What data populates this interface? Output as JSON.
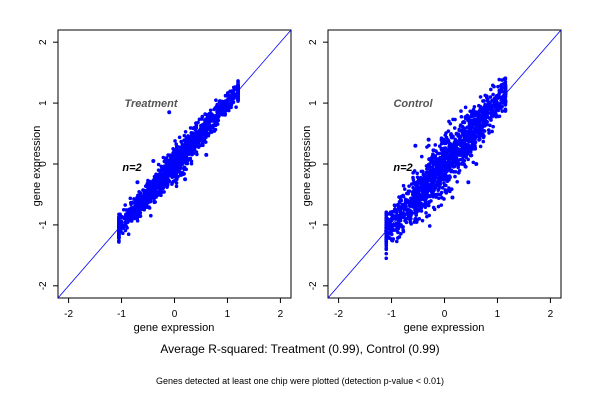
{
  "summary": "Average R-squared: Treatment (0.99), Control (0.99)",
  "footnote": "Genes detected at least one chip were plotted (detection p-value < 0.01)",
  "colors": {
    "points": "#0000ff",
    "identity_line": "#0000ff",
    "axes": "#000000"
  },
  "chart_data": [
    {
      "type": "scatter",
      "title": "Treatment",
      "annotation": "n=2",
      "xlabel": "gene expression",
      "ylabel": "gene expression",
      "xlim": [
        -2.2,
        2.2
      ],
      "ylim": [
        -2.2,
        2.2
      ],
      "x_ticks": [
        -2,
        -1,
        0,
        1,
        2
      ],
      "y_ticks": [
        -2,
        -1,
        0,
        1,
        2
      ],
      "reference_line": "y = x",
      "grid": false,
      "series": [
        {
          "cloud": {
            "x_range": [
              -1.05,
              1.2
            ],
            "y_spread": 0.12
          },
          "points": [
            {
              "x": -1.05,
              "y": -1.1
            },
            {
              "x": -1.0,
              "y": -1.0
            },
            {
              "x": -0.9,
              "y": -0.95
            },
            {
              "x": -0.8,
              "y": -0.75
            },
            {
              "x": -0.7,
              "y": -0.72
            },
            {
              "x": -0.6,
              "y": -0.55
            },
            {
              "x": -0.5,
              "y": -0.52
            },
            {
              "x": -0.4,
              "y": -0.35
            },
            {
              "x": -0.3,
              "y": -0.32
            },
            {
              "x": -0.2,
              "y": -0.15
            },
            {
              "x": -0.1,
              "y": -0.12
            },
            {
              "x": 0.0,
              "y": 0.02
            },
            {
              "x": 0.1,
              "y": 0.12
            },
            {
              "x": 0.2,
              "y": 0.18
            },
            {
              "x": 0.3,
              "y": 0.32
            },
            {
              "x": 0.4,
              "y": 0.38
            },
            {
              "x": 0.5,
              "y": 0.52
            },
            {
              "x": 0.6,
              "y": 0.58
            },
            {
              "x": 0.7,
              "y": 0.72
            },
            {
              "x": 0.8,
              "y": 0.78
            },
            {
              "x": 0.9,
              "y": 0.92
            },
            {
              "x": 1.0,
              "y": 1.0
            },
            {
              "x": 1.1,
              "y": 1.08
            },
            {
              "x": 1.2,
              "y": 1.2
            },
            {
              "x": -0.1,
              "y": 0.85
            },
            {
              "x": -0.7,
              "y": -0.3
            },
            {
              "x": 0.2,
              "y": -0.25
            },
            {
              "x": 0.6,
              "y": 0.15
            },
            {
              "x": -0.4,
              "y": 0.05
            }
          ]
        }
      ]
    },
    {
      "type": "scatter",
      "title": "Control",
      "annotation": "n=2",
      "xlabel": "gene expression",
      "ylabel": "gene expression",
      "xlim": [
        -2.2,
        2.2
      ],
      "ylim": [
        -2.2,
        2.2
      ],
      "x_ticks": [
        -2,
        -1,
        0,
        1,
        2
      ],
      "y_ticks": [
        -2,
        -1,
        0,
        1,
        2
      ],
      "reference_line": "y = x",
      "grid": false,
      "series": [
        {
          "cloud": {
            "x_range": [
              -1.1,
              1.15
            ],
            "y_spread": 0.2
          },
          "points": [
            {
              "x": -1.1,
              "y": -1.1
            },
            {
              "x": -1.0,
              "y": -1.05
            },
            {
              "x": -0.9,
              "y": -0.85
            },
            {
              "x": -0.8,
              "y": -0.85
            },
            {
              "x": -0.7,
              "y": -0.6
            },
            {
              "x": -0.6,
              "y": -0.7
            },
            {
              "x": -0.5,
              "y": -0.4
            },
            {
              "x": -0.4,
              "y": -0.5
            },
            {
              "x": -0.3,
              "y": -0.15
            },
            {
              "x": -0.2,
              "y": -0.3
            },
            {
              "x": -0.1,
              "y": 0.05
            },
            {
              "x": 0.0,
              "y": -0.1
            },
            {
              "x": 0.1,
              "y": 0.25
            },
            {
              "x": 0.2,
              "y": 0.05
            },
            {
              "x": 0.3,
              "y": 0.45
            },
            {
              "x": 0.4,
              "y": 0.25
            },
            {
              "x": 0.5,
              "y": 0.6
            },
            {
              "x": 0.6,
              "y": 0.45
            },
            {
              "x": 0.7,
              "y": 0.8
            },
            {
              "x": 0.8,
              "y": 0.65
            },
            {
              "x": 0.9,
              "y": 0.95
            },
            {
              "x": 1.0,
              "y": 0.95
            },
            {
              "x": 1.1,
              "y": 1.1
            },
            {
              "x": 1.15,
              "y": 1.15
            },
            {
              "x": -0.55,
              "y": 0.3
            },
            {
              "x": -0.3,
              "y": 0.4
            },
            {
              "x": 0.45,
              "y": -0.3
            },
            {
              "x": 0.15,
              "y": -0.55
            },
            {
              "x": 0.6,
              "y": 0.0
            }
          ]
        }
      ]
    }
  ]
}
